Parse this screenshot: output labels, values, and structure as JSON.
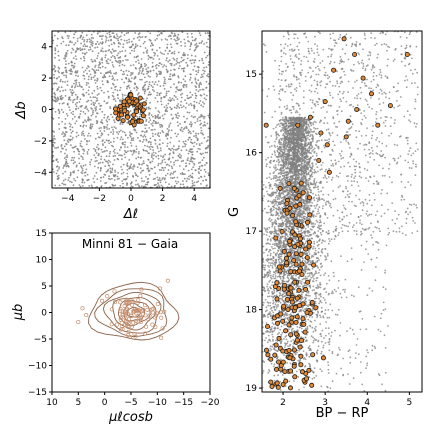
{
  "colors": {
    "field_star": "#808080",
    "member_fill": "#e08a38",
    "member_edge": "#1a1a1a",
    "contour": "#8a6248",
    "pm_point": "#c89070",
    "axis": "#000000",
    "background": "#ffffff"
  },
  "chart_data": [
    {
      "type": "scatter",
      "panel": "sky",
      "xlabel": "Δℓ",
      "ylabel": "Δb",
      "xlim": [
        -5,
        5
      ],
      "ylim": [
        -5,
        5
      ],
      "xticks": [
        -4,
        -2,
        0,
        2,
        4
      ],
      "yticks": [
        -4,
        -2,
        0,
        2,
        4
      ],
      "grid": false,
      "series": [
        {
          "role": "field stars",
          "distribution": "uniform",
          "x_range": [
            -5,
            5
          ],
          "y_range": [
            -5,
            5
          ],
          "approx_count": 2200
        },
        {
          "role": "cluster members",
          "distribution": "ring",
          "center": [
            0,
            0
          ],
          "radius_range": [
            0.3,
            1.0
          ],
          "approx_count": 60
        }
      ]
    },
    {
      "type": "scatter",
      "panel": "proper-motion",
      "title": "Minni 81  −  Gaia",
      "xlabel": "μℓcosb",
      "ylabel": "μb",
      "xlim": [
        10,
        -20
      ],
      "ylim": [
        -15,
        15
      ],
      "xticks": [
        10,
        5,
        0,
        -5,
        -10,
        -15,
        -20
      ],
      "yticks": [
        -15,
        -10,
        -5,
        0,
        5,
        10,
        15
      ],
      "grid": false,
      "contours": {
        "center": [
          -5.5,
          0
        ],
        "levels": [
          [
            1.2,
            0.9
          ],
          [
            2.0,
            1.6
          ],
          [
            3.0,
            2.3
          ],
          [
            4.0,
            3.0
          ],
          [
            5.2,
            3.8
          ],
          [
            6.6,
            4.5
          ],
          [
            8.2,
            5.3
          ]
        ]
      },
      "series": [
        {
          "role": "members",
          "x_center": -5.5,
          "y_center": 0,
          "x_spread": 3.2,
          "y_spread": 2.5,
          "approx_count": 95
        },
        {
          "role": "outliers",
          "points": [
            [
              5.0,
              -1.8
            ],
            [
              3.5,
              -0.5
            ],
            [
              -12,
              6
            ],
            [
              -10.5,
              4.5
            ],
            [
              -11,
              -3
            ],
            [
              0.5,
              2.2
            ],
            [
              4.2,
              0.8
            ]
          ]
        }
      ]
    },
    {
      "type": "scatter",
      "panel": "color-magnitude",
      "xlabel": "BP − RP",
      "ylabel": "G",
      "xlim": [
        1.5,
        5.3
      ],
      "ylim": [
        19.05,
        14.45
      ],
      "xticks": [
        2,
        3,
        4,
        5
      ],
      "yticks": [
        15,
        16,
        17,
        18,
        19
      ],
      "grid": false,
      "series": [
        {
          "role": "field stars",
          "description": "red giant branch sequence widening toward faint magnitudes",
          "approx_count": 6000
        },
        {
          "role": "cluster members",
          "approx_count": 170
        },
        {
          "role": "bright red members",
          "points": [
            [
              3.45,
              14.55
            ],
            [
              3.7,
              14.75
            ],
            [
              4.1,
              15.25
            ],
            [
              4.55,
              15.4
            ],
            [
              4.95,
              14.75
            ],
            [
              3.0,
              15.35
            ],
            [
              3.75,
              15.45
            ],
            [
              4.25,
              15.65
            ],
            [
              3.55,
              15.6
            ],
            [
              2.65,
              15.55
            ],
            [
              3.2,
              14.95
            ],
            [
              3.9,
              15.05
            ],
            [
              2.9,
              15.75
            ],
            [
              2.35,
              15.65
            ],
            [
              3.05,
              15.9
            ],
            [
              3.5,
              15.8
            ],
            [
              1.6,
              15.65
            ],
            [
              2.85,
              16.1
            ],
            [
              3.1,
              16.25
            ]
          ]
        }
      ]
    }
  ]
}
